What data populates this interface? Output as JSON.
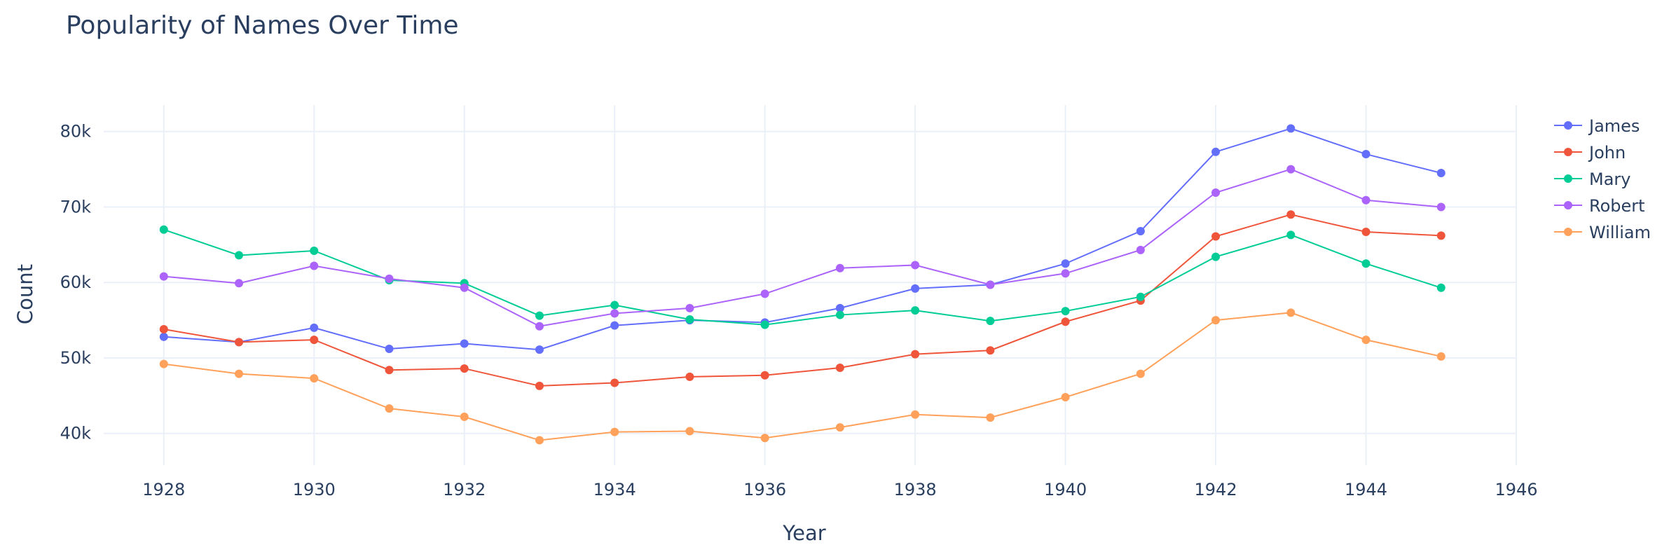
{
  "chart_data": {
    "type": "line",
    "title": "Popularity of Names Over Time",
    "xlabel": "Year",
    "ylabel": "Count",
    "x": [
      1928,
      1929,
      1930,
      1931,
      1932,
      1933,
      1934,
      1935,
      1936,
      1937,
      1938,
      1939,
      1940,
      1941,
      1942,
      1943,
      1944,
      1945
    ],
    "xlim": [
      1927.2,
      1946
    ],
    "ylim": [
      35800,
      83500
    ],
    "xticks": [
      1928,
      1930,
      1932,
      1934,
      1936,
      1938,
      1940,
      1942,
      1944,
      1946
    ],
    "xtick_labels": [
      "1928",
      "1930",
      "1932",
      "1934",
      "1936",
      "1938",
      "1940",
      "1942",
      "1944",
      "1946"
    ],
    "yticks": [
      40000,
      50000,
      60000,
      70000,
      80000
    ],
    "ytick_labels": [
      "40k",
      "50k",
      "60k",
      "70k",
      "80k"
    ],
    "grid": true,
    "legend_position": "top-right",
    "series": [
      {
        "name": "James",
        "color": "#636efa",
        "values": [
          52800,
          52100,
          54000,
          51200,
          51900,
          51100,
          54300,
          55000,
          54700,
          56600,
          59200,
          59700,
          62500,
          66800,
          77300,
          80400,
          77000,
          74500
        ]
      },
      {
        "name": "John",
        "color": "#ef553b",
        "values": [
          53800,
          52100,
          52400,
          48400,
          48600,
          46300,
          46700,
          47500,
          47700,
          48700,
          50500,
          51000,
          54800,
          57600,
          66100,
          69000,
          66700,
          66200
        ]
      },
      {
        "name": "Mary",
        "color": "#00cc96",
        "values": [
          67000,
          63600,
          64200,
          60300,
          59900,
          55600,
          57000,
          55100,
          54400,
          55700,
          56300,
          54900,
          56200,
          58100,
          63400,
          66300,
          62500,
          59300
        ]
      },
      {
        "name": "Robert",
        "color": "#ab63fa",
        "values": [
          60800,
          59900,
          62200,
          60500,
          59300,
          54200,
          55900,
          56600,
          58500,
          61900,
          62300,
          59700,
          61200,
          64300,
          71900,
          75000,
          70900,
          70000
        ]
      },
      {
        "name": "William",
        "color": "#ffa15a",
        "values": [
          49200,
          47900,
          47300,
          43300,
          42200,
          39100,
          40200,
          40300,
          39400,
          40800,
          42500,
          42100,
          44800,
          47900,
          55000,
          56000,
          52400,
          50200
        ]
      }
    ]
  }
}
